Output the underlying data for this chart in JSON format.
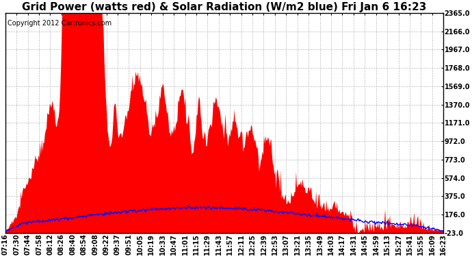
{
  "title": "Grid Power (watts red) & Solar Radiation (W/m2 blue) Fri Jan 6 16:23",
  "copyright_text": "Copyright 2012 Cartronics.com",
  "y_ticks": [
    -23.0,
    176.0,
    375.0,
    574.0,
    773.0,
    972.0,
    1171.0,
    1370.0,
    1569.0,
    1768.0,
    1967.0,
    2166.0,
    2365.0
  ],
  "y_min": -23.0,
  "y_max": 2365.0,
  "x_labels": [
    "07:16",
    "07:30",
    "07:44",
    "07:58",
    "08:12",
    "08:26",
    "08:40",
    "08:54",
    "09:08",
    "09:22",
    "09:37",
    "09:51",
    "10:05",
    "10:19",
    "10:33",
    "10:47",
    "11:01",
    "11:15",
    "11:29",
    "11:43",
    "11:57",
    "12:11",
    "12:25",
    "12:39",
    "12:53",
    "13:07",
    "13:21",
    "13:35",
    "13:49",
    "14:03",
    "14:17",
    "14:31",
    "14:45",
    "14:59",
    "15:13",
    "15:27",
    "15:41",
    "15:55",
    "16:09",
    "16:23"
  ],
  "background_color": "#ffffff",
  "grid_color": "#aaaaaa",
  "red_color": "#ff0000",
  "blue_color": "#0000ff",
  "title_fontsize": 11,
  "copyright_fontsize": 7,
  "tick_fontsize": 7
}
